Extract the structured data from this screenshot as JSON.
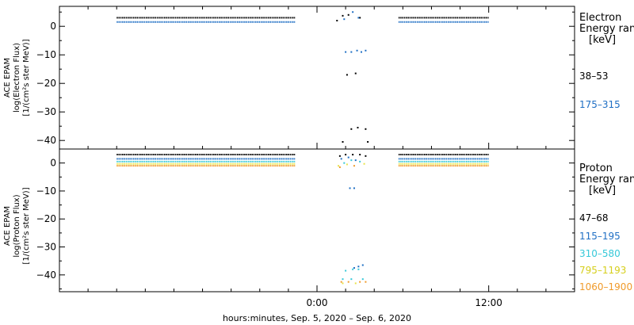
{
  "chart_data": [
    {
      "type": "scatter",
      "panel": "electron",
      "ylabel_lines": [
        "ACE EPAM",
        "log(Electron Flux)",
        "[1/(cm²s ster MeV)]"
      ],
      "ylim": [
        -43,
        7
      ],
      "yticks": [
        0,
        -10,
        -20,
        -30,
        -40
      ],
      "legend_title_lines": [
        "Electron",
        "Energy range",
        "[keV]"
      ],
      "series": [
        {
          "name": "38–53",
          "color": "#000000",
          "segments": [
            {
              "x_start": -14.0,
              "x_end": -1.5,
              "y": 3.0
            },
            {
              "x_start": 5.7,
              "x_end": 12.0,
              "y": 3.0
            }
          ],
          "points": [
            {
              "x": 1.4,
              "y": 2.0
            },
            {
              "x": 1.8,
              "y": 3.7
            },
            {
              "x": 2.2,
              "y": 4.0
            },
            {
              "x": 3.0,
              "y": 3.0
            },
            {
              "x": 2.1,
              "y": -17.0
            },
            {
              "x": 2.7,
              "y": -16.5
            },
            {
              "x": 2.4,
              "y": -36.0
            },
            {
              "x": 2.85,
              "y": -35.5
            },
            {
              "x": 3.4,
              "y": -36.0
            },
            {
              "x": 1.8,
              "y": -40.5
            },
            {
              "x": 3.55,
              "y": -40.5
            }
          ]
        },
        {
          "name": "175–315",
          "color": "#1f6fc4",
          "segments": [
            {
              "x_start": -14.0,
              "x_end": -1.5,
              "y": 1.5
            },
            {
              "x_start": 5.7,
              "x_end": 12.0,
              "y": 1.5
            }
          ],
          "points": [
            {
              "x": 1.9,
              "y": 2.5
            },
            {
              "x": 2.5,
              "y": 5.0
            },
            {
              "x": 2.9,
              "y": 3.0
            },
            {
              "x": 2.0,
              "y": -9.0
            },
            {
              "x": 2.4,
              "y": -9.0
            },
            {
              "x": 2.8,
              "y": -8.5
            },
            {
              "x": 3.1,
              "y": -9.0
            },
            {
              "x": 3.4,
              "y": -8.5
            }
          ]
        }
      ]
    },
    {
      "type": "scatter",
      "panel": "proton",
      "ylabel_lines": [
        "ACE EPAM",
        "log(Proton Flux)",
        "[1/(cm²s ster MeV)]"
      ],
      "ylim": [
        -46,
        5
      ],
      "yticks": [
        0,
        -10,
        -20,
        -30,
        -40
      ],
      "legend_title_lines": [
        "Proton",
        "Energy range",
        "[keV]"
      ],
      "series": [
        {
          "name": "47–68",
          "color": "#000000",
          "segments": [
            {
              "x_start": -14.0,
              "x_end": -1.5,
              "y": 3.0
            },
            {
              "x_start": 5.7,
              "x_end": 12.0,
              "y": 3.0
            }
          ],
          "points": [
            {
              "x": 1.6,
              "y": 2.5
            },
            {
              "x": 2.0,
              "y": 3.0
            },
            {
              "x": 2.5,
              "y": 3.0
            },
            {
              "x": 3.0,
              "y": 3.0
            },
            {
              "x": 3.4,
              "y": 2.5
            }
          ]
        },
        {
          "name": "115–195",
          "color": "#1f6fc4",
          "segments": [
            {
              "x_start": -14.0,
              "x_end": -1.5,
              "y": 1.5
            },
            {
              "x_start": 5.7,
              "x_end": 12.0,
              "y": 1.5
            }
          ],
          "points": [
            {
              "x": 1.7,
              "y": 1.5
            },
            {
              "x": 2.2,
              "y": 2.0
            },
            {
              "x": 2.7,
              "y": 1.0
            },
            {
              "x": 2.3,
              "y": -9.0
            },
            {
              "x": 2.6,
              "y": -9.0
            },
            {
              "x": 2.6,
              "y": -37.5
            },
            {
              "x": 2.9,
              "y": -37.0
            },
            {
              "x": 3.2,
              "y": -36.5
            }
          ]
        },
        {
          "name": "310–580",
          "color": "#35c8d8",
          "segments": [
            {
              "x_start": -14.0,
              "x_end": -1.5,
              "y": 0.5
            },
            {
              "x_start": 5.7,
              "x_end": 12.0,
              "y": 0.5
            }
          ],
          "points": [
            {
              "x": 1.9,
              "y": 0.0
            },
            {
              "x": 2.4,
              "y": 1.0
            },
            {
              "x": 3.0,
              "y": 0.5
            },
            {
              "x": 2.0,
              "y": -38.5
            },
            {
              "x": 2.5,
              "y": -38.0
            },
            {
              "x": 2.9,
              "y": -38.0
            },
            {
              "x": 1.8,
              "y": -41.5
            },
            {
              "x": 2.4,
              "y": -41.5
            },
            {
              "x": 3.2,
              "y": -41.5
            }
          ]
        },
        {
          "name": "795–1193",
          "color": "#e8e34a",
          "segments": [
            {
              "x_start": -14.0,
              "x_end": -1.5,
              "y": -0.3
            },
            {
              "x_start": 5.7,
              "x_end": 12.0,
              "y": -0.3
            }
          ],
          "points": [
            {
              "x": 1.5,
              "y": -1.0
            },
            {
              "x": 2.1,
              "y": -0.5
            },
            {
              "x": 3.3,
              "y": -0.3
            },
            {
              "x": 1.8,
              "y": -43.0
            },
            {
              "x": 2.7,
              "y": -43.0
            }
          ]
        },
        {
          "name": "1060–1900",
          "color": "#f09a2a",
          "segments": [
            {
              "x_start": -14.0,
              "x_end": -1.5,
              "y": -1.0
            },
            {
              "x_start": 5.7,
              "x_end": 12.0,
              "y": -1.0
            }
          ],
          "points": [
            {
              "x": 1.6,
              "y": -1.5
            },
            {
              "x": 2.6,
              "y": -1.0
            },
            {
              "x": 1.7,
              "y": -42.5
            },
            {
              "x": 2.2,
              "y": -42.5
            },
            {
              "x": 3.0,
              "y": -42.5
            },
            {
              "x": 3.4,
              "y": -42.5
            }
          ]
        }
      ]
    }
  ],
  "x_axis": {
    "range_hours": [
      -18.0,
      18.0
    ],
    "tick_labels": [
      {
        "x": 0,
        "label": "0:00"
      },
      {
        "x": 12,
        "label": "12:00"
      }
    ],
    "minor_ticks_hours": [
      -16,
      -14,
      -12,
      -10,
      -8,
      -6,
      -4,
      -2,
      2,
      4,
      6,
      8,
      10,
      14,
      16
    ],
    "title": "hours:minutes, Sep.  5, 2020 – Sep.  6, 2020"
  }
}
